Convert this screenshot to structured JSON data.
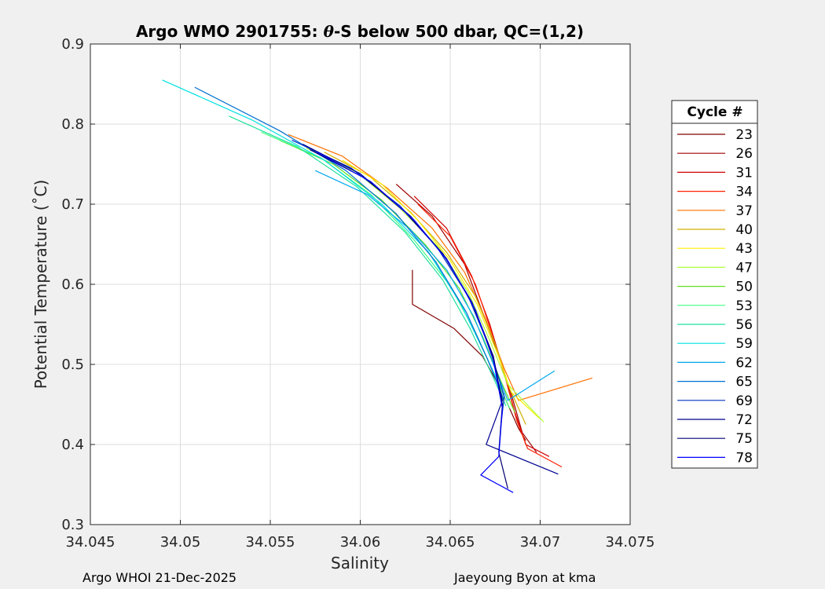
{
  "chart_data": {
    "type": "line",
    "title_prefix": "Argo WMO 2901755: ",
    "title_symbol": "θ",
    "title_suffix": "-S below 500 dbar,  QC=(1,2)",
    "xlabel": "Salinity",
    "ylabel": "Potential Temperature (˚C)",
    "xlim": [
      34.045,
      34.075
    ],
    "ylim": [
      0.3,
      0.9
    ],
    "xticks": [
      "34.045",
      "34.05",
      "34.055",
      "34.06",
      "34.065",
      "34.07",
      "34.075"
    ],
    "yticks": [
      "0.3",
      "0.4",
      "0.5",
      "0.6",
      "0.7",
      "0.8",
      "0.9"
    ],
    "grid": true,
    "legend_title": "Cycle #",
    "legend_position": "right-outside",
    "series": [
      {
        "name": "23",
        "color": "#800000",
        "x": [
          34.0629,
          34.0629,
          34.0652,
          34.0668,
          34.0678,
          34.0684,
          34.0688,
          34.0692
        ],
        "y": [
          0.618,
          0.575,
          0.545,
          0.51,
          0.47,
          0.44,
          0.42,
          0.405
        ]
      },
      {
        "name": "26",
        "color": "#a00000",
        "x": [
          34.062,
          34.064,
          34.0658,
          34.0668,
          34.0678,
          34.0685,
          34.069,
          34.0698
        ],
        "y": [
          0.725,
          0.685,
          0.625,
          0.565,
          0.505,
          0.455,
          0.415,
          0.39
        ]
      },
      {
        "name": "31",
        "color": "#d00000",
        "x": [
          34.063,
          34.0648,
          34.0662,
          34.0672,
          34.068,
          34.0686,
          34.0692,
          34.0705
        ],
        "y": [
          0.71,
          0.67,
          0.61,
          0.55,
          0.49,
          0.44,
          0.4,
          0.385
        ]
      },
      {
        "name": "34",
        "color": "#ff2000",
        "x": [
          34.0632,
          34.065,
          34.0664,
          34.0673,
          34.0681,
          34.0687,
          34.0693,
          34.0712
        ],
        "y": [
          0.7,
          0.66,
          0.6,
          0.54,
          0.48,
          0.43,
          0.395,
          0.372
        ]
      },
      {
        "name": "37",
        "color": "#ff7000",
        "x": [
          34.056,
          34.059,
          34.0615,
          34.064,
          34.0658,
          34.067,
          34.068,
          34.0688,
          34.0729
        ],
        "y": [
          0.787,
          0.76,
          0.72,
          0.67,
          0.615,
          0.555,
          0.495,
          0.455,
          0.483
        ]
      },
      {
        "name": "40",
        "color": "#d0b000",
        "x": [
          34.058,
          34.0605,
          34.0628,
          34.0648,
          34.0664,
          34.0675,
          34.0683,
          34.0692
        ],
        "y": [
          0.765,
          0.735,
          0.69,
          0.64,
          0.585,
          0.525,
          0.47,
          0.425
        ]
      },
      {
        "name": "43",
        "color": "#ffee00",
        "x": [
          34.059,
          34.0612,
          34.0632,
          34.065,
          34.0665,
          34.0676,
          34.0684,
          34.07
        ],
        "y": [
          0.755,
          0.725,
          0.68,
          0.63,
          0.575,
          0.515,
          0.465,
          0.432
        ]
      },
      {
        "name": "47",
        "color": "#b0ff40",
        "x": [
          34.057,
          34.0598,
          34.0622,
          34.0644,
          34.066,
          34.0672,
          34.0682,
          34.0702
        ],
        "y": [
          0.77,
          0.74,
          0.695,
          0.645,
          0.59,
          0.53,
          0.475,
          0.428
        ]
      },
      {
        "name": "50",
        "color": "#60e020",
        "x": [
          34.0555,
          34.0585,
          34.0612,
          34.0636,
          34.0655,
          34.0668,
          34.0678,
          34.0686
        ],
        "y": [
          0.78,
          0.75,
          0.705,
          0.65,
          0.595,
          0.535,
          0.48,
          0.44
        ]
      },
      {
        "name": "53",
        "color": "#40ff80",
        "x": [
          34.0545,
          34.0578,
          34.0606,
          34.063,
          34.065,
          34.0664,
          34.0675,
          34.0683
        ],
        "y": [
          0.79,
          0.758,
          0.712,
          0.655,
          0.598,
          0.54,
          0.485,
          0.445
        ]
      },
      {
        "name": "56",
        "color": "#20e0a0",
        "x": [
          34.0527,
          34.0565,
          34.0598,
          34.0625,
          34.0646,
          34.0661,
          34.0673,
          34.0681
        ],
        "y": [
          0.81,
          0.772,
          0.722,
          0.665,
          0.605,
          0.545,
          0.488,
          0.448
        ]
      },
      {
        "name": "59",
        "color": "#00e0e0",
        "x": [
          34.049,
          34.054,
          34.058,
          34.0612,
          34.0638,
          34.0656,
          34.067,
          34.068
        ],
        "y": [
          0.855,
          0.805,
          0.755,
          0.7,
          0.64,
          0.575,
          0.51,
          0.462
        ]
      },
      {
        "name": "62",
        "color": "#00a8f0",
        "x": [
          34.0575,
          34.0604,
          34.0628,
          34.0648,
          34.0663,
          34.0674,
          34.0682,
          34.0708
        ],
        "y": [
          0.742,
          0.712,
          0.668,
          0.618,
          0.56,
          0.5,
          0.455,
          0.492
        ]
      },
      {
        "name": "65",
        "color": "#0070d0",
        "x": [
          34.0508,
          34.0555,
          34.0592,
          34.062,
          34.0642,
          34.0659,
          34.0671,
          34.068
        ],
        "y": [
          0.846,
          0.792,
          0.742,
          0.688,
          0.628,
          0.565,
          0.505,
          0.455
        ]
      },
      {
        "name": "69",
        "color": "#0030c0",
        "x": [
          34.0562,
          34.0595,
          34.0622,
          34.0643,
          34.066,
          34.0672,
          34.068,
          34.0678
        ],
        "y": [
          0.78,
          0.745,
          0.698,
          0.645,
          0.585,
          0.52,
          0.46,
          0.42
        ]
      },
      {
        "name": "72",
        "color": "#000090",
        "x": [
          34.0568,
          34.06,
          34.0625,
          34.0646,
          34.0662,
          34.0673,
          34.0679,
          34.067,
          34.071
        ],
        "y": [
          0.775,
          0.738,
          0.69,
          0.638,
          0.578,
          0.515,
          0.455,
          0.4,
          0.363
        ]
      },
      {
        "name": "75",
        "color": "#000070",
        "x": [
          34.0572,
          34.0603,
          34.0628,
          34.0648,
          34.0663,
          34.0674,
          34.0679,
          34.0677,
          34.0682
        ],
        "y": [
          0.768,
          0.732,
          0.685,
          0.632,
          0.572,
          0.51,
          0.45,
          0.39,
          0.345
        ]
      },
      {
        "name": "78",
        "color": "#0000ff",
        "x": [
          34.0576,
          34.0606,
          34.063,
          34.0649,
          34.0664,
          34.0674,
          34.0679,
          34.0677,
          34.0667,
          34.0685
        ],
        "y": [
          0.765,
          0.728,
          0.68,
          0.628,
          0.568,
          0.505,
          0.445,
          0.385,
          0.362,
          0.34
        ]
      }
    ]
  },
  "footer": {
    "left": "Argo WHOI 21-Dec-2025",
    "right": "Jaeyoung Byon at kma"
  }
}
